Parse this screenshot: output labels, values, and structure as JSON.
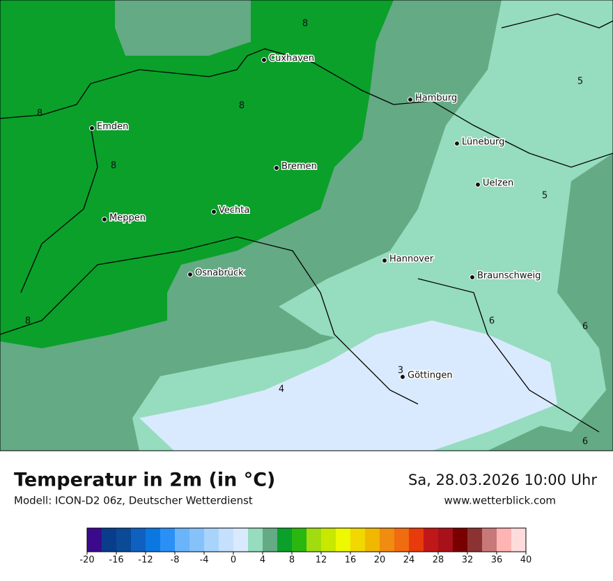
{
  "header": {
    "title": "Temperatur in 2m (in °C)",
    "subtitle": "Modell: ICON-D2 06z, Deutscher Wetterdienst",
    "datetime": "Sa, 28.03.2026 10:00 Uhr",
    "website": "www.wetterblick.com"
  },
  "cities": [
    "Cuxhaven",
    "Hamburg",
    "Emden",
    "Lüneburg",
    "Bremen",
    "Uelzen",
    "Vechta",
    "Meppen",
    "Hannover",
    "Osnabrück",
    "Braunschweig",
    "Göttingen"
  ],
  "isoline_labels": [
    8,
    8,
    8,
    8,
    8,
    5,
    5,
    6,
    6,
    6,
    4,
    3
  ],
  "legend": {
    "ticks": [
      -20,
      -16,
      -12,
      -8,
      -4,
      0,
      4,
      8,
      12,
      16,
      20,
      24,
      28,
      32,
      36,
      40
    ],
    "colors": [
      "#3a0a8a",
      "#0a3c8c",
      "#0a4a96",
      "#1060c0",
      "#0a78e0",
      "#2a90f5",
      "#6ab4fa",
      "#86c2fa",
      "#a8d4fc",
      "#c4e0fc",
      "#daeafe",
      "#96dcbe",
      "#64aa84",
      "#0aa02a",
      "#2ab810",
      "#a0dc10",
      "#c8e800",
      "#eef800",
      "#f0d800",
      "#f0b800",
      "#f08c10",
      "#f06c10",
      "#e83a0a",
      "#c01818",
      "#a8101a",
      "#780000",
      "#8c3232",
      "#c87878",
      "#ffb4b4",
      "#ffdcdc"
    ]
  }
}
